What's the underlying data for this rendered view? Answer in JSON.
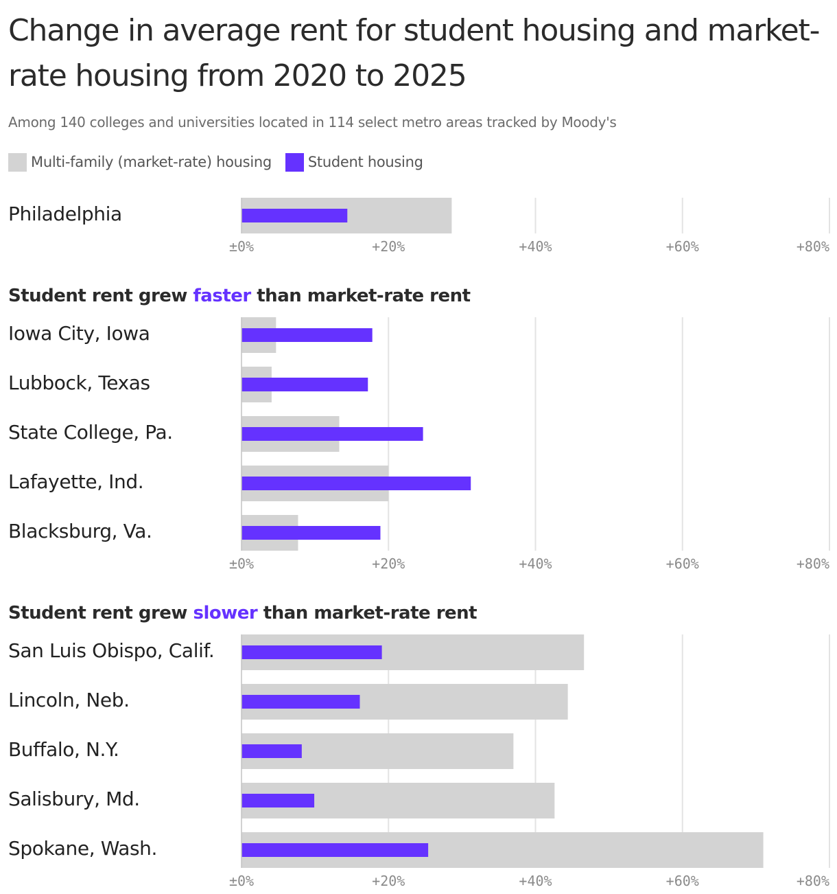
{
  "title": "Change in average rent for student housing and market-rate housing from 2020 to 2025",
  "subtitle": "Among 140 colleges and universities located in 114 select metro areas tracked by Moody's",
  "legend": [
    {
      "label": "Multi-family (market-rate) housing",
      "color": "#d3d3d3"
    },
    {
      "label": "Student housing",
      "color": "#6532ff"
    }
  ],
  "headings": {
    "faster": {
      "prefix": "Student rent grew ",
      "accent": "faster",
      "suffix": " than market-rate rent"
    },
    "slower": {
      "prefix": "Student rent grew ",
      "accent": "slower",
      "suffix": " than market-rate rent"
    }
  },
  "labels": {
    "philadelphia": "Philadelphia",
    "faster": [
      "Iowa City, Iowa",
      "Lubbock, Texas",
      "State College, Pa.",
      "Lafayette, Ind.",
      "Blacksburg, Va."
    ],
    "slower": [
      "San Luis Obispo, Calif.",
      "Lincoln, Neb.",
      "Buffalo, N.Y.",
      "Salisbury, Md.",
      "Spokane, Wash."
    ]
  },
  "chart_data": {
    "type": "bar",
    "orientation": "horizontal",
    "unit": "%",
    "xlim": [
      0,
      80
    ],
    "ticks": [
      0,
      20,
      40,
      60,
      80
    ],
    "tick_labels": [
      "±0%",
      "+20%",
      "+40%",
      "+60%",
      "+80%"
    ],
    "series_colors": {
      "Multi-family (market-rate) housing": "#d3d3d3",
      "Student housing": "#6532ff"
    },
    "panels": [
      {
        "key": "philadelphia",
        "rows": [
          {
            "category": "Philadelphia",
            "market_rate": 28.6,
            "student": 14.4
          }
        ]
      },
      {
        "key": "faster",
        "rows": [
          {
            "category": "Iowa City, Iowa",
            "market_rate": 4.7,
            "student": 17.8
          },
          {
            "category": "Lubbock, Texas",
            "market_rate": 4.1,
            "student": 17.2
          },
          {
            "category": "State College, Pa.",
            "market_rate": 13.3,
            "student": 24.7
          },
          {
            "category": "Lafayette, Ind.",
            "market_rate": 20.0,
            "student": 31.2
          },
          {
            "category": "Blacksburg, Va.",
            "market_rate": 7.7,
            "student": 18.9
          }
        ]
      },
      {
        "key": "slower",
        "rows": [
          {
            "category": "San Luis Obispo, Calif.",
            "market_rate": 46.6,
            "student": 19.1
          },
          {
            "category": "Lincoln, Neb.",
            "market_rate": 44.4,
            "student": 16.1
          },
          {
            "category": "Buffalo, N.Y.",
            "market_rate": 37.0,
            "student": 8.2
          },
          {
            "category": "Salisbury, Md.",
            "market_rate": 42.6,
            "student": 9.9
          },
          {
            "category": "Spokane, Wash.",
            "market_rate": 71.0,
            "student": 25.4
          }
        ]
      }
    ]
  }
}
